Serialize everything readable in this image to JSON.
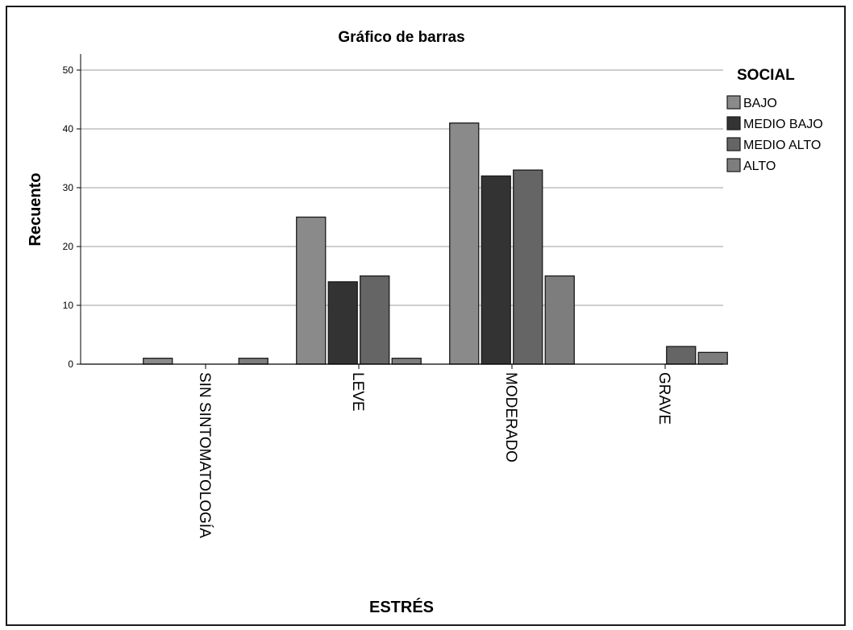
{
  "chart_data": {
    "type": "bar",
    "title": "Gráfico de barras",
    "xlabel": "ESTRÉS",
    "ylabel": "Recuento",
    "categories": [
      "SIN SINTOMATOLOGÍA",
      "LEVE",
      "MODERADO",
      "GRAVE"
    ],
    "series": [
      {
        "name": "BAJO",
        "color": "#8a8a8a",
        "values": [
          1,
          25,
          41,
          0
        ]
      },
      {
        "name": "MEDIO BAJO",
        "color": "#333333",
        "values": [
          0,
          14,
          32,
          0
        ]
      },
      {
        "name": "MEDIO ALTO",
        "color": "#656565",
        "values": [
          0,
          15,
          33,
          3
        ]
      },
      {
        "name": "ALTO",
        "color": "#7d7d7d",
        "values": [
          1,
          1,
          15,
          2
        ]
      }
    ],
    "ylim": [
      0,
      50
    ],
    "yticks": [
      0,
      10,
      20,
      30,
      40,
      50
    ],
    "grid": "horizontal",
    "legend": {
      "title": "SOCIAL",
      "placement": "right"
    }
  }
}
